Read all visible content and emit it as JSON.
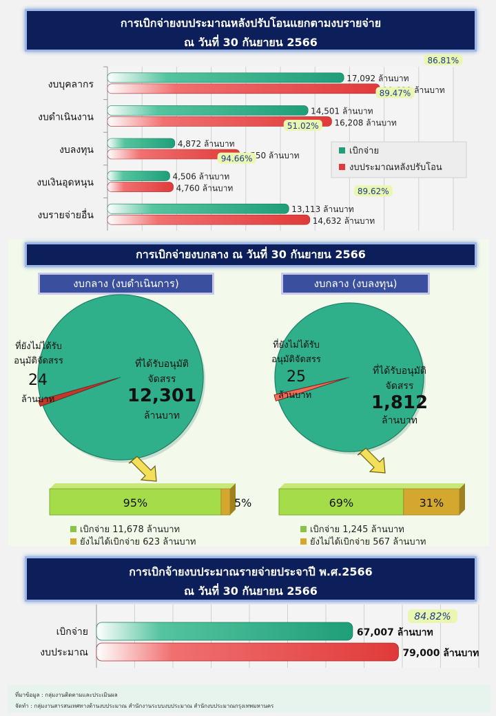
{
  "top": {
    "title_line1": "การเบิกจ่ายงบประมาณหลังปรับโอนแยกตามงบรายจ่าย",
    "title_line2": "ณ วันที่ 30 กันยายน 2566",
    "legend": [
      "เบิกจ่าย",
      "งบประมาณหลังปรับโอน"
    ]
  },
  "chart_data": [
    {
      "type": "bar",
      "orientation": "horizontal",
      "title": "การเบิกจ่ายงบประมาณหลังปรับโอนแยกตามงบรายจ่าย ณ วันที่ 30 กันยายน 2566",
      "categories": [
        "งบบุคลากร",
        "งบดำเนินงาน",
        "งบลงทุน",
        "งบเงินอุดหนุน",
        "งบรายจ่ายอื่น"
      ],
      "series": [
        {
          "name": "เบิกจ่าย",
          "values": [
            17092,
            14501,
            4872,
            4506,
            13113
          ],
          "labels": [
            "17,092 ล้านบาท",
            "14,501 ล้านบาท",
            "4,872 ล้านบาท",
            "4,506 ล้านบาท",
            "13,113 ล้านบาท"
          ],
          "color": "#1f9e78"
        },
        {
          "name": "งบประมาณหลังปรับโอน",
          "values": [
            19688,
            16208,
            9550,
            4760,
            14632
          ],
          "labels": [
            "19,688 ล้านบาท",
            "16,208 ล้านบาท",
            "9,550 ล้านบาท",
            "4,760 ล้านบาท",
            "14,632 ล้านบาท"
          ],
          "color": "#e03a3a"
        }
      ],
      "percent_labels": [
        "86.81%",
        "89.47%",
        "51.02%",
        "94.66%",
        "89.62%"
      ],
      "xlim": [
        0,
        25000
      ],
      "grid": true,
      "legend_position": "right"
    },
    {
      "type": "pie",
      "title": "งบกลาง (งบดำเนินการ)",
      "slices": [
        {
          "label": "ที่ได้รับอนุมัติจัดสรร",
          "value": 12301,
          "value_text": "12,301",
          "unit": "ล้านบาท",
          "color": "#2fb08a"
        },
        {
          "label": "ที่ยังไม่ได้รับอนุมัติจัดสรร",
          "value": 24,
          "value_text": "24",
          "unit": "ล้านบาท",
          "color": "#c0392b"
        }
      ],
      "breakdown": {
        "disbursed_pct": "95%",
        "remaining_pct": "5%",
        "disbursed_fraction": 0.95,
        "legend": [
          "เบิกจ่าย 11,678 ล้านบาท",
          "ยังไม่ได้เบิกจ่าย 623 ล้านบาท"
        ]
      }
    },
    {
      "type": "pie",
      "title": "งบกลาง (งบลงทุน)",
      "slices": [
        {
          "label": "ที่ได้รับอนุมัติจัดสรร",
          "value": 1812,
          "value_text": "1,812",
          "unit": "ล้านบาท",
          "color": "#2fb08a"
        },
        {
          "label": "ที่ยังไม่ได้รับอนุมัติจัดสรร",
          "value": 25,
          "value_text": "25",
          "unit": "ล้านบาท",
          "color": "#f26c5a"
        }
      ],
      "breakdown": {
        "disbursed_pct": "69%",
        "remaining_pct": "31%",
        "disbursed_fraction": 0.69,
        "legend": [
          "เบิกจ่าย 1,245 ล้านบาท",
          "ยังไม่ได้เบิกจ่าย 567 ล้านบาท"
        ]
      }
    },
    {
      "type": "bar",
      "orientation": "horizontal",
      "title": "การเบิกจ่ายงบประมาณรายจ่ายประจาปี พ.ศ.2566 ณ วันที่ 30 กันยายน 2566",
      "categories": [
        "เบิกจ่าย",
        "งบประมาณ"
      ],
      "values": [
        67007,
        79000
      ],
      "labels": [
        "67,007 ล้านบาท",
        "79,000 ล้านบาท"
      ],
      "colors": [
        "#1f9e78",
        "#e03a3a"
      ],
      "percent_label": "84.82%",
      "xlim": [
        0,
        100000
      ],
      "grid": true
    }
  ],
  "middle": {
    "title": "การเบิกจ่ายงบกลาง ณ วันที่ 30 กันยายน 2566",
    "left_subtitle": "งบกลาง (งบดำเนินการ)",
    "right_subtitle": "งบกลาง (งบลงทุน)",
    "approved_label_1": "ที่ได้รับอนุมัติ",
    "approved_label_2": "จัดสรร",
    "pending_label_1": "ที่ยังไม่ได้รับ",
    "pending_label_2": "อนุมัติจัดสรร",
    "unit": "ล้านบาท"
  },
  "bottom": {
    "title_line1": "การเบิกจ้ายงบประมาณรายจ่ายประจาปี พ.ศ.2566",
    "title_line2": "ณ วันที่ 30 กันยายน 2566"
  },
  "footer": {
    "source": "ที่มาข้อมูล : กลุ่มงานติดตามและประเมินผล",
    "prepared_by": "จัดทำ : กลุ่มงานสารสนเทศทางด้านงบประมาณ สำนักงานระบบงบประมาณ สำนักงบประมาณกรุงเทพมหานคร"
  }
}
